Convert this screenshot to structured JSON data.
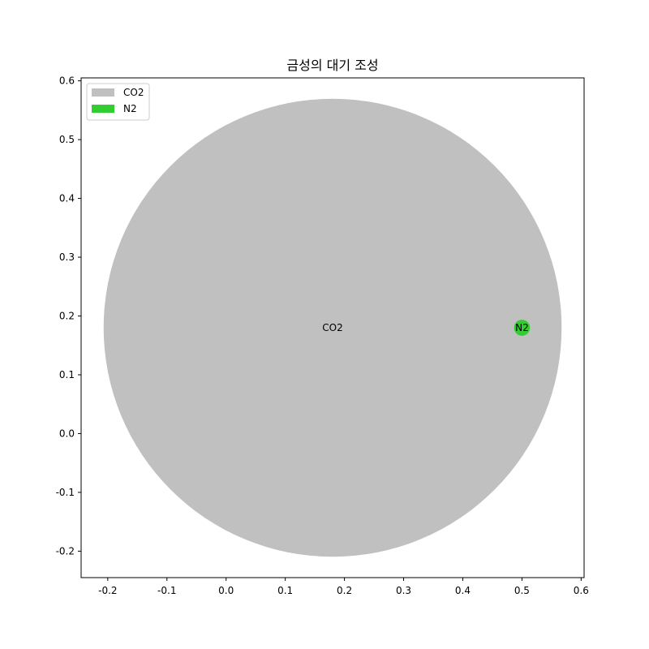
{
  "chart_data": {
    "type": "scatter",
    "title": "금성의 대기 조성",
    "xlabel": "",
    "ylabel": "",
    "xlim": [
      -0.245,
      0.605
    ],
    "ylim": [
      -0.245,
      0.605
    ],
    "xticks": [
      "-0.2",
      "-0.1",
      "0.0",
      "0.1",
      "0.2",
      "0.3",
      "0.4",
      "0.5",
      "0.6"
    ],
    "yticks": [
      "-0.2",
      "-0.1",
      "0.0",
      "0.1",
      "0.2",
      "0.3",
      "0.4",
      "0.5",
      "0.6"
    ],
    "xtick_values": [
      -0.2,
      -0.1,
      0.0,
      0.1,
      0.2,
      0.3,
      0.4,
      0.5,
      0.6
    ],
    "ytick_values": [
      -0.2,
      -0.1,
      0.0,
      0.1,
      0.2,
      0.3,
      0.4,
      0.5,
      0.6
    ],
    "grid": false,
    "legend_position": "top-left",
    "series": [
      {
        "name": "CO2",
        "color": "#c0c0c0",
        "x": 0.18,
        "y": 0.18,
        "radius": 0.387,
        "label": "CO2"
      },
      {
        "name": "N2",
        "color": "#32cd32",
        "x": 0.5,
        "y": 0.18,
        "radius": 0.0135,
        "label": "N2"
      }
    ]
  }
}
